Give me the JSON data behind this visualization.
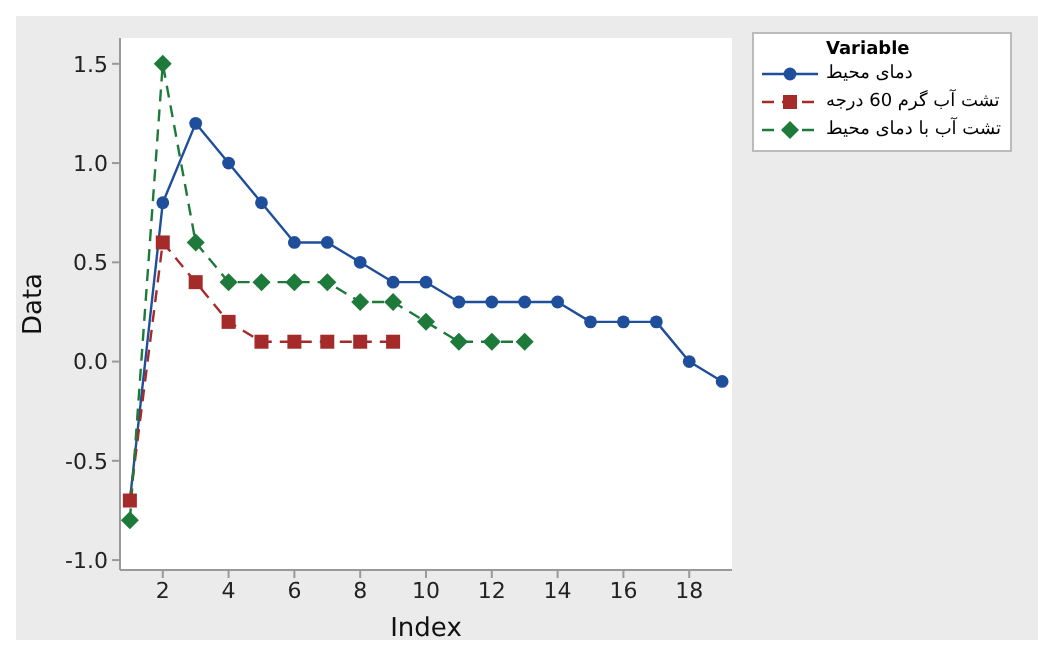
{
  "chart_data": {
    "type": "line",
    "xlabel": "Index",
    "ylabel": "Data",
    "legend_title": "Variable",
    "legend": "top right",
    "grid": false,
    "xlim": [
      0.7,
      19.3
    ],
    "xticks": [
      2,
      4,
      6,
      8,
      10,
      12,
      14,
      16,
      18
    ],
    "ylim": [
      -1.05,
      1.63
    ],
    "yticks": [
      {
        "value": -1,
        "label": "-1.0"
      },
      -0.5,
      {
        "value": 0,
        "label": "0.0"
      },
      0.5,
      {
        "value": 1,
        "label": "1.0"
      },
      1.5
    ],
    "series": [
      {
        "name": "دمای محیط",
        "color": "#1f4e9a",
        "marker": "circle",
        "line_style": "solid",
        "x": [
          1,
          2,
          3,
          4,
          5,
          6,
          7,
          8,
          9,
          10,
          11,
          12,
          13,
          14,
          15,
          16,
          17,
          18,
          19
        ],
        "values": [
          -0.7,
          0.8,
          1.2,
          1.0,
          0.8,
          0.6,
          0.6,
          0.5,
          0.4,
          0.4,
          0.3,
          0.3,
          0.3,
          0.3,
          0.2,
          0.2,
          0.2,
          0.0,
          -0.1
        ]
      },
      {
        "name": "تشت آب گرم 60 درجه",
        "color": "#a52a2a",
        "marker": "square",
        "line_style": "dashed",
        "x": [
          1,
          2,
          3,
          4,
          5,
          6,
          7,
          8,
          9
        ],
        "values": [
          -0.7,
          0.6,
          0.4,
          0.2,
          0.1,
          0.1,
          0.1,
          0.1,
          0.1
        ]
      },
      {
        "name": "تشت آب با دمای محیط",
        "color": "#1e7a3a",
        "marker": "diamond",
        "line_style": "dashed",
        "x": [
          1,
          2,
          3,
          4,
          5,
          6,
          7,
          8,
          9,
          10,
          11,
          12,
          13
        ],
        "values": [
          -0.8,
          1.5,
          0.6,
          0.4,
          0.4,
          0.4,
          0.4,
          0.3,
          0.3,
          0.2,
          0.1,
          0.1,
          0.1
        ]
      }
    ]
  }
}
